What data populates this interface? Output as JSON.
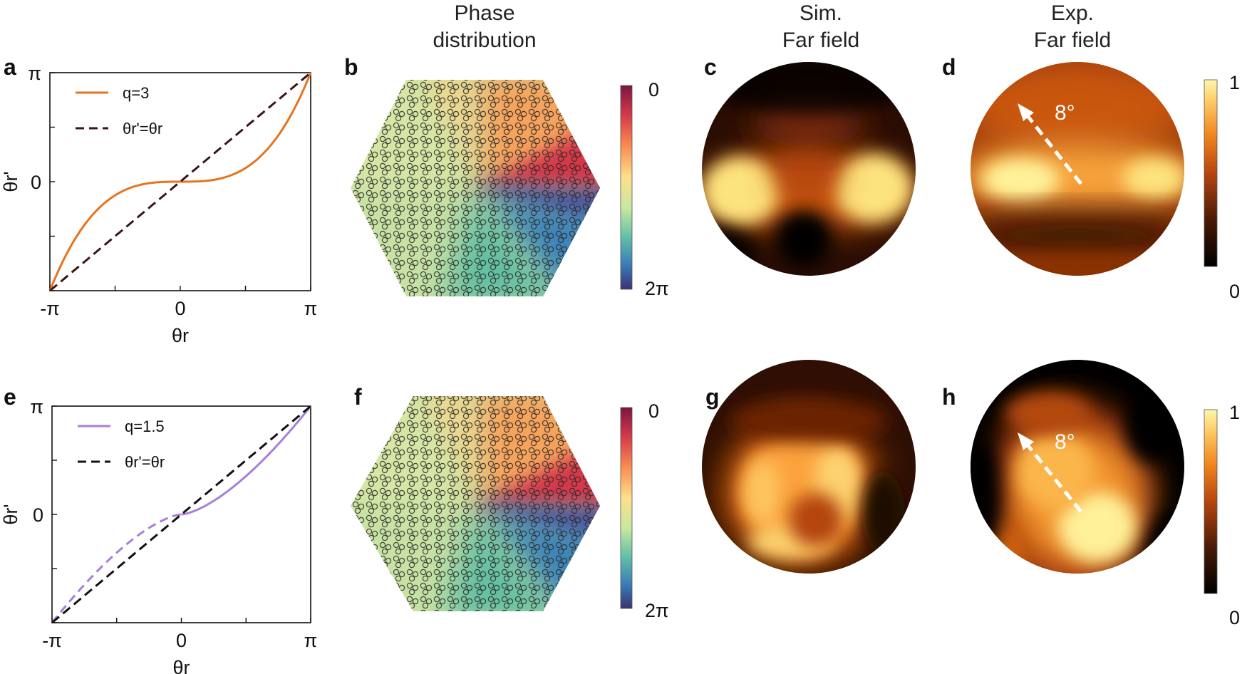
{
  "headers": {
    "phase": [
      "Phase",
      "distribution"
    ],
    "sim": [
      "Sim.",
      "Far field"
    ],
    "exp": [
      "Exp.",
      "Far field"
    ]
  },
  "panel_labels": [
    "a",
    "b",
    "c",
    "d",
    "e",
    "f",
    "g",
    "h"
  ],
  "angle_annotation": "8°",
  "phase_colorbar": {
    "top": "0",
    "bottom": "2π"
  },
  "intensity_colorbar": {
    "top": "1",
    "bottom": "0"
  },
  "chart_data": [
    {
      "type": "line",
      "panel": "a",
      "xlabel": "θr",
      "ylabel": "θr'",
      "xlim": [
        "-π",
        "π"
      ],
      "ylim": [
        "-π",
        "π"
      ],
      "xticklabels": [
        "-π",
        "0",
        "π"
      ],
      "yticklabels": [
        "π",
        "0"
      ],
      "series": [
        {
          "name": "q=3",
          "formula": "x^3/π^2",
          "color": "#e8731f",
          "style": "solid"
        },
        {
          "name": "θr'=θr",
          "formula": "x",
          "color": "#3a1418",
          "style": "dashed"
        }
      ]
    },
    {
      "type": "line",
      "panel": "e",
      "xlabel": "θr",
      "ylabel": "θr'",
      "xlim": [
        "-π",
        "π"
      ],
      "ylim": [
        "-π",
        "π"
      ],
      "xticklabels": [
        "-π",
        "0",
        "π"
      ],
      "yticklabels": [
        "π",
        "0"
      ],
      "series": [
        {
          "name": "q=1.5",
          "formula": "sign(x)|x|^1.5/π^0.5",
          "color": "#a77fd9",
          "style": "solid for x≥0, dashed for x<0"
        },
        {
          "name": "θr'=θr",
          "formula": "x",
          "color": "#111111",
          "style": "dashed"
        }
      ]
    }
  ]
}
